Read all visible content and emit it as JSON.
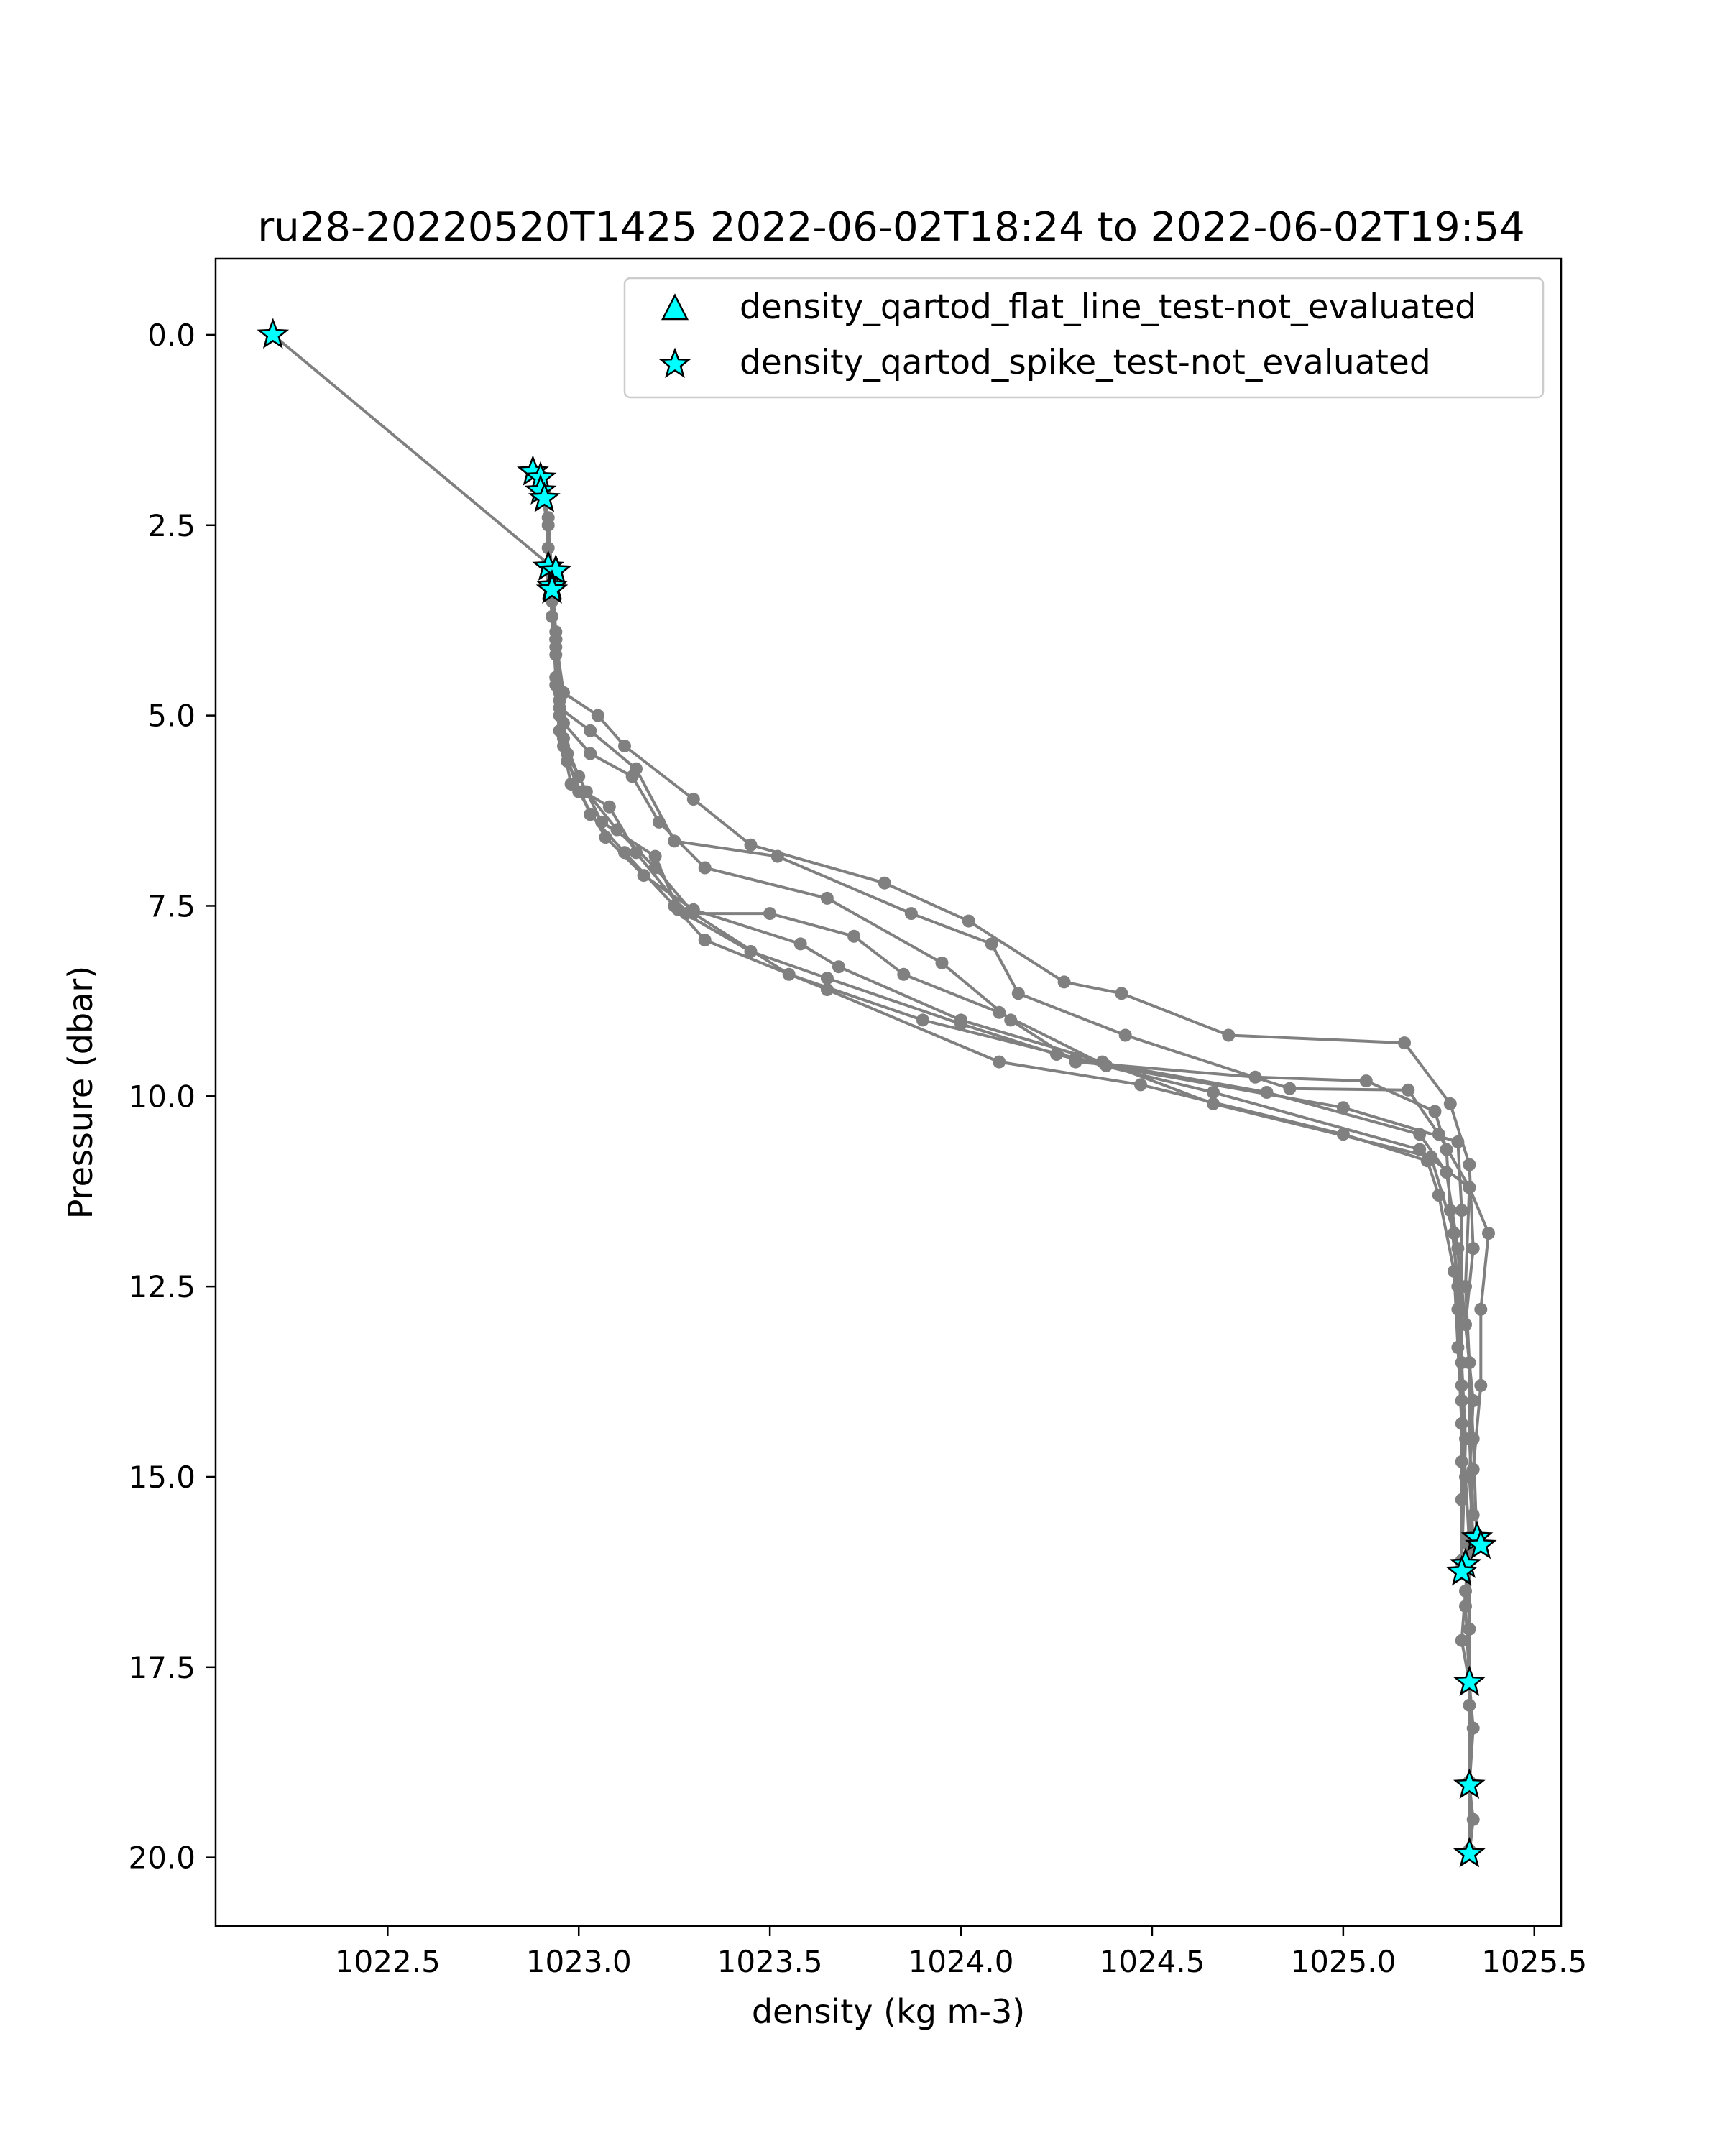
{
  "chart_data": {
    "type": "line",
    "title": "ru28-20220520T1425 2022-06-02T18:24 to 2022-06-02T19:54",
    "xlabel": "density (kg m-3)",
    "ylabel": "Pressure (dbar)",
    "xlim": [
      1022.05,
      1025.57
    ],
    "ylim": [
      20.9,
      -1.0
    ],
    "y_inverted": true,
    "xticks": [
      "1022.5",
      "1023.0",
      "1023.5",
      "1024.0",
      "1024.5",
      "1025.0",
      "1025.5"
    ],
    "yticks": [
      "0.0",
      "2.5",
      "5.0",
      "7.5",
      "10.0",
      "12.5",
      "15.0",
      "17.5",
      "20.0"
    ],
    "grid": false,
    "legend_position": "top-right",
    "line_color": "#808080",
    "marker_color": "#00ffff",
    "legend": [
      {
        "label": "density_qartod_flat_line_test-not_evaluated",
        "marker": "triangle"
      },
      {
        "label": "density_qartod_spike_test-not_evaluated",
        "marker": "star"
      }
    ],
    "series": [
      {
        "points": [
          [
            1022.2,
            0.0
          ],
          [
            1022.93,
            3.05
          ],
          [
            1022.93,
            3.5
          ],
          [
            1022.94,
            4.0
          ],
          [
            1022.94,
            4.5
          ],
          [
            1022.95,
            5.0
          ],
          [
            1022.97,
            5.5
          ],
          [
            1023.02,
            6.0
          ],
          [
            1023.1,
            6.5
          ],
          [
            1023.2,
            7.0
          ],
          [
            1023.3,
            7.6
          ],
          [
            1023.55,
            8.4
          ],
          [
            1023.9,
            9.0
          ],
          [
            1024.3,
            9.5
          ],
          [
            1024.8,
            9.95
          ],
          [
            1025.2,
            10.5
          ],
          [
            1025.27,
            11.0
          ],
          [
            1025.3,
            12.0
          ],
          [
            1025.31,
            13.0
          ],
          [
            1025.31,
            14.0
          ],
          [
            1025.32,
            15.0
          ],
          [
            1025.33,
            15.9
          ],
          [
            1025.33,
            17.0
          ],
          [
            1025.33,
            18.0
          ],
          [
            1025.33,
            19.0
          ],
          [
            1025.33,
            19.9
          ]
        ]
      },
      {
        "points": [
          [
            1022.89,
            1.8
          ],
          [
            1022.92,
            2.5
          ],
          [
            1022.93,
            3.3
          ],
          [
            1022.94,
            4.0
          ],
          [
            1022.96,
            4.7
          ],
          [
            1023.05,
            5.0
          ],
          [
            1023.12,
            5.4
          ],
          [
            1023.3,
            6.1
          ],
          [
            1023.45,
            6.7
          ],
          [
            1023.8,
            7.2
          ],
          [
            1024.02,
            7.7
          ],
          [
            1024.27,
            8.5
          ],
          [
            1024.42,
            8.65
          ],
          [
            1024.7,
            9.2
          ],
          [
            1025.16,
            9.3
          ],
          [
            1025.28,
            10.1
          ],
          [
            1025.33,
            10.9
          ],
          [
            1025.34,
            12.0
          ],
          [
            1025.32,
            13.0
          ],
          [
            1025.34,
            14.0
          ],
          [
            1025.33,
            15.0
          ],
          [
            1025.34,
            15.8
          ],
          [
            1025.32,
            16.7
          ],
          [
            1025.33,
            17.7
          ]
        ]
      },
      {
        "points": [
          [
            1022.9,
            1.85
          ],
          [
            1022.92,
            2.4
          ],
          [
            1022.93,
            3.2
          ],
          [
            1022.94,
            4.0
          ],
          [
            1022.95,
            4.9
          ],
          [
            1023.03,
            5.2
          ],
          [
            1023.15,
            5.7
          ],
          [
            1023.25,
            6.65
          ],
          [
            1023.52,
            6.85
          ],
          [
            1023.87,
            7.6
          ],
          [
            1024.08,
            8.0
          ],
          [
            1024.15,
            8.65
          ],
          [
            1024.43,
            9.2
          ],
          [
            1024.86,
            9.9
          ],
          [
            1025.17,
            9.92
          ],
          [
            1025.25,
            10.5
          ],
          [
            1025.33,
            11.2
          ],
          [
            1025.32,
            12.5
          ],
          [
            1025.33,
            13.5
          ],
          [
            1025.33,
            14.5
          ],
          [
            1025.34,
            15.5
          ]
        ]
      },
      {
        "points": [
          [
            1022.91,
            2.1
          ],
          [
            1022.92,
            2.8
          ],
          [
            1022.93,
            3.4
          ],
          [
            1022.94,
            4.2
          ],
          [
            1022.96,
            5.1
          ],
          [
            1023.03,
            5.5
          ],
          [
            1023.14,
            5.8
          ],
          [
            1023.21,
            6.4
          ],
          [
            1023.33,
            7.0
          ],
          [
            1023.65,
            7.4
          ],
          [
            1023.95,
            8.25
          ],
          [
            1024.13,
            9.0
          ],
          [
            1024.3,
            9.55
          ],
          [
            1024.77,
            9.75
          ],
          [
            1025.06,
            9.8
          ],
          [
            1025.24,
            10.2
          ],
          [
            1025.27,
            10.7
          ],
          [
            1025.28,
            11.5
          ],
          [
            1025.3,
            12.5
          ],
          [
            1025.31,
            13.5
          ],
          [
            1025.32,
            14.5
          ],
          [
            1025.31,
            16.2
          ]
        ]
      },
      {
        "points": [
          [
            1022.92,
            3.1
          ],
          [
            1022.93,
            3.7
          ],
          [
            1022.94,
            4.5
          ],
          [
            1022.95,
            5.2
          ],
          [
            1022.98,
            5.9
          ],
          [
            1023.08,
            6.2
          ],
          [
            1023.15,
            6.8
          ],
          [
            1023.28,
            7.6
          ],
          [
            1023.5,
            7.6
          ],
          [
            1023.72,
            7.9
          ],
          [
            1023.85,
            8.4
          ],
          [
            1024.1,
            8.9
          ],
          [
            1024.38,
            9.6
          ],
          [
            1025.0,
            10.15
          ],
          [
            1025.3,
            10.6
          ],
          [
            1025.31,
            11.5
          ],
          [
            1025.31,
            12.5
          ],
          [
            1025.33,
            13.5
          ],
          [
            1025.34,
            14.5
          ],
          [
            1025.35,
            15.9
          ]
        ]
      },
      {
        "points": [
          [
            1022.93,
            3.2
          ],
          [
            1022.94,
            3.9
          ],
          [
            1022.94,
            4.6
          ],
          [
            1022.96,
            5.4
          ],
          [
            1023.0,
            6.0
          ],
          [
            1023.07,
            6.6
          ],
          [
            1023.17,
            7.1
          ],
          [
            1023.3,
            7.55
          ],
          [
            1023.58,
            8.0
          ],
          [
            1023.68,
            8.3
          ],
          [
            1024.0,
            9.0
          ],
          [
            1024.37,
            9.55
          ],
          [
            1024.66,
            10.1
          ],
          [
            1025.23,
            10.8
          ],
          [
            1025.29,
            11.8
          ],
          [
            1025.3,
            12.8
          ],
          [
            1025.31,
            13.8
          ],
          [
            1025.31,
            14.8
          ],
          [
            1025.31,
            16.1
          ]
        ]
      },
      {
        "points": [
          [
            1022.93,
            3.3
          ],
          [
            1022.94,
            4.1
          ],
          [
            1022.95,
            4.8
          ],
          [
            1022.97,
            5.6
          ],
          [
            1023.03,
            6.3
          ],
          [
            1023.12,
            6.8
          ],
          [
            1023.25,
            7.5
          ],
          [
            1023.33,
            7.95
          ],
          [
            1023.65,
            8.6
          ],
          [
            1024.1,
            9.55
          ],
          [
            1024.47,
            9.85
          ],
          [
            1025.0,
            10.5
          ],
          [
            1025.22,
            10.85
          ],
          [
            1025.25,
            11.3
          ],
          [
            1025.29,
            12.3
          ],
          [
            1025.3,
            13.3
          ],
          [
            1025.31,
            14.3
          ],
          [
            1025.31,
            15.3
          ]
        ]
      },
      {
        "points": [
          [
            1022.93,
            3.35
          ],
          [
            1022.94,
            4.0
          ],
          [
            1022.95,
            4.7
          ],
          [
            1022.96,
            5.3
          ],
          [
            1023.0,
            5.8
          ],
          [
            1023.06,
            6.4
          ],
          [
            1023.2,
            6.85
          ],
          [
            1023.26,
            7.55
          ],
          [
            1023.45,
            8.1
          ],
          [
            1023.65,
            8.45
          ],
          [
            1024.0,
            9.05
          ],
          [
            1024.25,
            9.45
          ],
          [
            1024.66,
            9.95
          ],
          [
            1025.2,
            10.7
          ],
          [
            1025.33,
            11.2
          ],
          [
            1025.38,
            11.8
          ],
          [
            1025.36,
            12.8
          ],
          [
            1025.36,
            13.8
          ],
          [
            1025.34,
            14.9
          ],
          [
            1025.33,
            15.8
          ],
          [
            1025.32,
            16.5
          ],
          [
            1025.31,
            17.15
          ],
          [
            1025.33,
            17.7
          ],
          [
            1025.34,
            18.3
          ],
          [
            1025.33,
            19.05
          ],
          [
            1025.34,
            19.5
          ],
          [
            1025.33,
            19.95
          ]
        ]
      }
    ],
    "spike_markers": [
      [
        1022.2,
        0.0
      ],
      [
        1022.88,
        1.8
      ],
      [
        1022.9,
        1.88
      ],
      [
        1022.9,
        2.05
      ],
      [
        1022.91,
        2.15
      ],
      [
        1022.92,
        3.05
      ],
      [
        1022.94,
        3.1
      ],
      [
        1022.93,
        3.3
      ],
      [
        1022.93,
        3.35
      ],
      [
        1025.35,
        15.8
      ],
      [
        1025.36,
        15.9
      ],
      [
        1025.32,
        16.15
      ],
      [
        1025.31,
        16.25
      ],
      [
        1025.33,
        17.7
      ],
      [
        1025.33,
        19.05
      ],
      [
        1025.33,
        19.95
      ]
    ],
    "flat_line_markers": []
  }
}
